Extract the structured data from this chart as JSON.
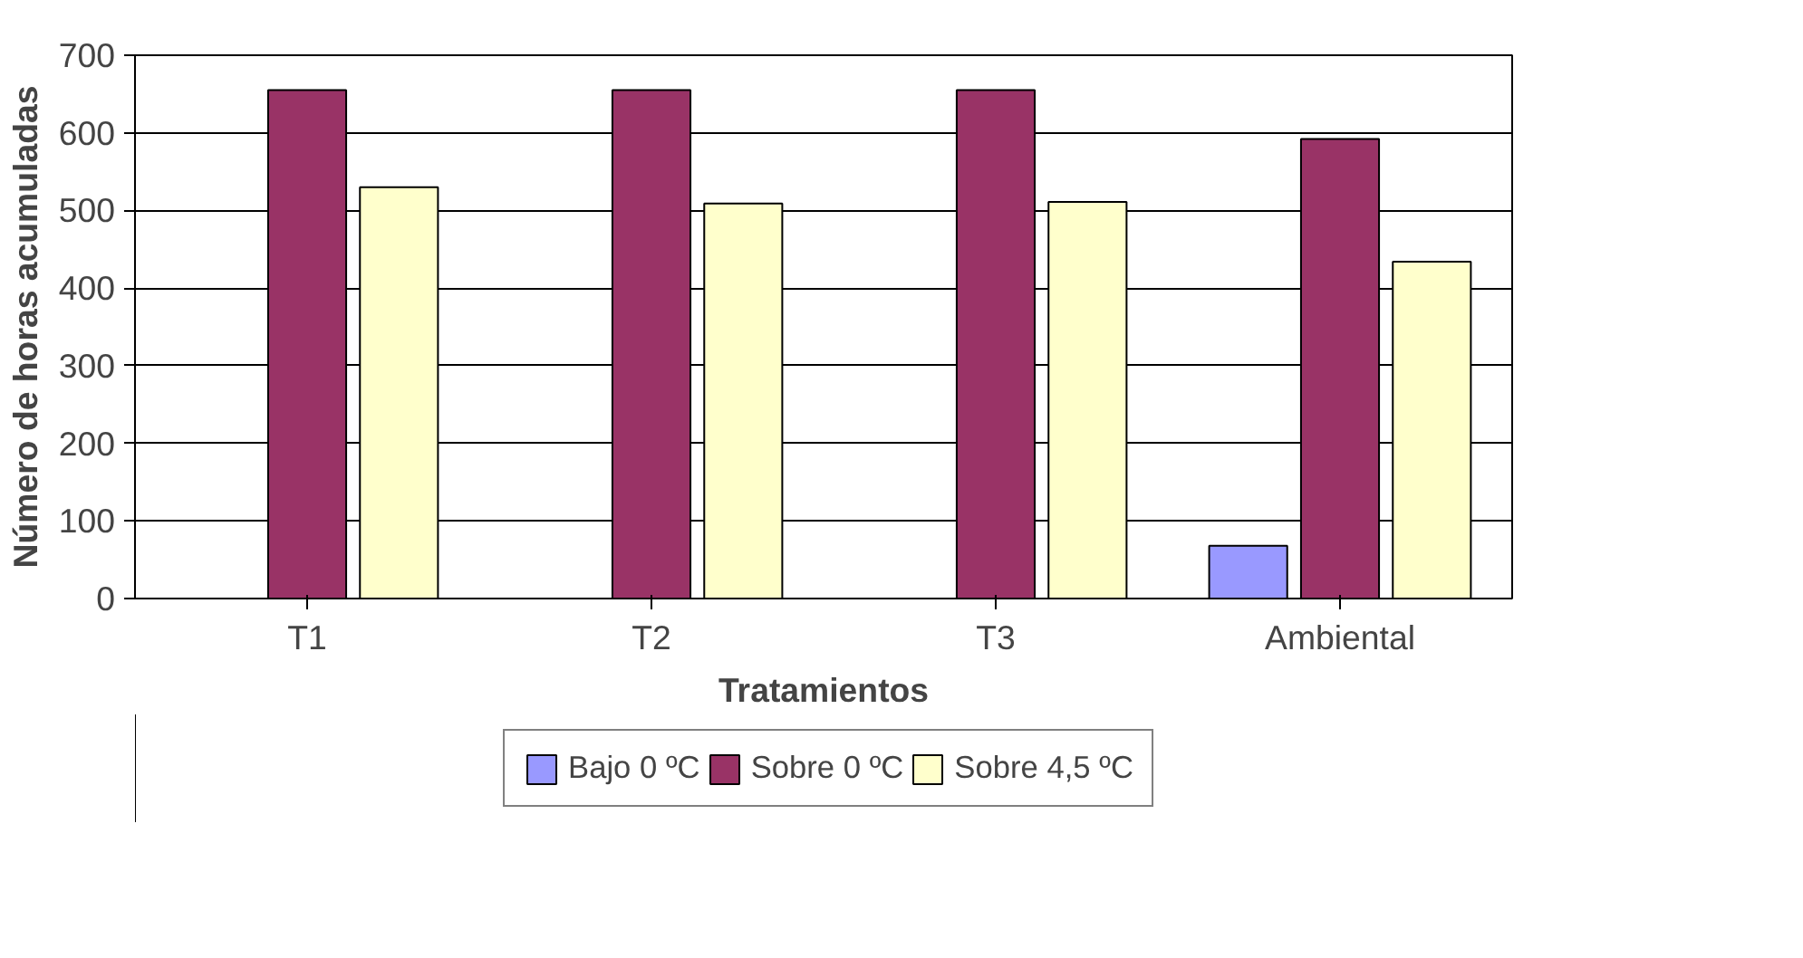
{
  "chart_data": {
    "type": "bar",
    "xlabel": "Tratamientos",
    "ylabel": "Número de horas acumuladas",
    "categories": [
      "T1",
      "T2",
      "T3",
      "Ambiental"
    ],
    "series": [
      {
        "name": "Bajo 0 ºC",
        "color": "#9999ff",
        "values": [
          0,
          0,
          0,
          68
        ]
      },
      {
        "name": "Sobre 0 ºC",
        "color": "#993366",
        "values": [
          655,
          655,
          655,
          592
        ]
      },
      {
        "name": "Sobre 4,5 ºC",
        "color": "#ffffcc",
        "values": [
          530,
          509,
          511,
          434
        ]
      }
    ],
    "ylim": [
      0,
      700
    ],
    "yticks": [
      0,
      100,
      200,
      300,
      400,
      500,
      600,
      700
    ],
    "grid": "y",
    "legend": "bottom"
  }
}
